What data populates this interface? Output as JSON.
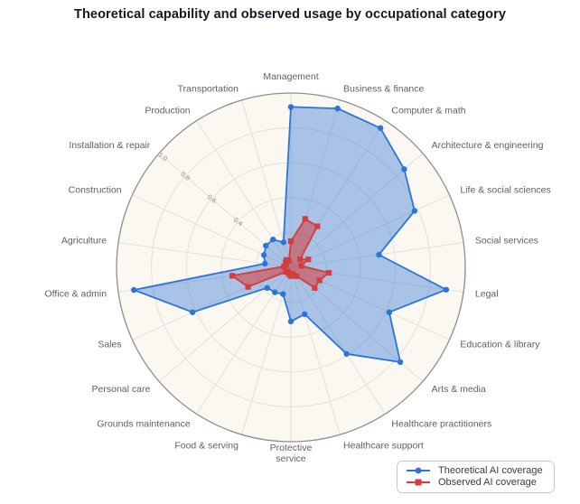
{
  "title": "Theoretical capability and observed usage by occupational category",
  "legend": {
    "items": [
      {
        "label": "Theoretical AI coverage",
        "marker": "circle",
        "color": "#2b74d8"
      },
      {
        "label": "Observed AI coverage",
        "marker": "square",
        "color": "#d43d3d"
      }
    ]
  },
  "colors": {
    "polar_background": "#faf8f1",
    "grid_line": "#e3e1d8",
    "axis_line": "#8f8e88",
    "category_label": "#5d5f63",
    "tick_label": "#8d8c86",
    "title": "#17171f",
    "theoretical_blue": "#2b74d8",
    "observed_red": "#d43d3d"
  },
  "chart_data": {
    "type": "radar",
    "title": "Theoretical capability and observed usage by occupational category",
    "direction": "clockwise",
    "start_angle_deg": 90,
    "range": [
      0,
      1
    ],
    "grid": true,
    "legend_position": "bottom-right",
    "radial_ticks": [
      0.4,
      0.6,
      0.8,
      1.0
    ],
    "grid_ticks": [
      0.2,
      0.4,
      0.6,
      0.8,
      1.0
    ],
    "categories": [
      "Management",
      "Business & finance",
      "Computer & math",
      "Architecture & engineering",
      "Life & social sciences",
      "Social services",
      "Legal",
      "Education & library",
      "Arts & media",
      "Healthcare practitioners",
      "Healthcare support",
      "Protective service",
      "Food & serving",
      "Grounds maintenance",
      "Personal care",
      "Sales",
      "Office & admin",
      "Agriculture",
      "Construction",
      "Installation & repair",
      "Production",
      "Transportation"
    ],
    "series": [
      {
        "name": "Theoretical AI coverage",
        "marker": "circle",
        "color": "#2b74d8",
        "fill": "rgba(58,121,214,0.42)",
        "values": [
          0.92,
          0.95,
          0.95,
          0.86,
          0.78,
          0.51,
          0.9,
          0.62,
          0.83,
          0.59,
          0.28,
          0.31,
          0.16,
          0.17,
          0.18,
          0.62,
          0.91,
          0.15,
          0.17,
          0.19,
          0.19,
          0.15
        ]
      },
      {
        "name": "Observed AI coverage",
        "marker": "square",
        "color": "#d43d3d",
        "fill": "rgba(214,60,60,0.55)",
        "values": [
          0.15,
          0.29,
          0.28,
          0.07,
          0.11,
          0.06,
          0.22,
          0.18,
          0.18,
          0.06,
          0.04,
          0.05,
          0.04,
          0.03,
          0.04,
          0.27,
          0.34,
          0.04,
          0.03,
          0.04,
          0.05,
          0.04
        ]
      }
    ]
  }
}
